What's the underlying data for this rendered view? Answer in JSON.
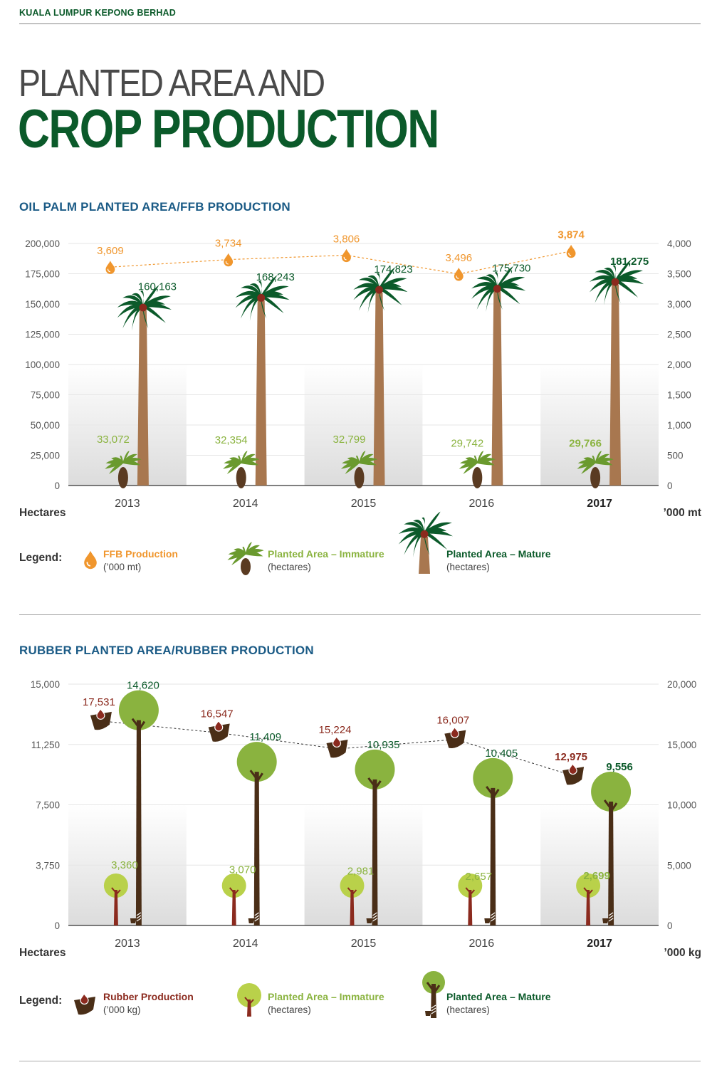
{
  "header": {
    "company": "KUALA LUMPUR KEPONG BERHAD"
  },
  "page": {
    "title_line1": "PLANTED AREA AND",
    "title_line2": "CROP PRODUCTION"
  },
  "colors": {
    "mature_palm": "#0b5a2a",
    "immature": "#8ab33f",
    "ffb": "#f0962d",
    "rubber": "#8b2a1e",
    "trunk": "#a8774f",
    "section_title": "#1b5b86"
  },
  "chart_data": [
    {
      "type": "bar",
      "title": "OIL PALM PLANTED AREA/FFB PRODUCTION",
      "categories": [
        "2013",
        "2014",
        "2015",
        "2016",
        "2017"
      ],
      "highlight_category": "2017",
      "ylabel_left": "Hectares",
      "ylabel_right": "’000 mt",
      "ylim_left": [
        0,
        200000
      ],
      "ylim_right": [
        0,
        4000
      ],
      "yticks_left": [
        "0",
        "25,000",
        "50,000",
        "75,000",
        "100,000",
        "125,000",
        "150,000",
        "175,000",
        "200,000"
      ],
      "yticks_right": [
        "0",
        "500",
        "1,000",
        "1,500",
        "2,000",
        "2,500",
        "3,000",
        "3,500",
        "4,000"
      ],
      "series": [
        {
          "name": "Planted Area – Mature",
          "unit": "(hectares)",
          "axis": "left",
          "icon": "palm-tree-mature-icon",
          "values": [
            160163,
            168243,
            174823,
            175730,
            181275
          ],
          "labels": [
            "160,163",
            "168,243",
            "174,823",
            "175,730",
            "181,275"
          ]
        },
        {
          "name": "Planted Area – Immature",
          "unit": "(hectares)",
          "axis": "left",
          "icon": "palm-tree-immature-icon",
          "values": [
            33072,
            32354,
            32799,
            29742,
            29766
          ],
          "labels": [
            "33,072",
            "32,354",
            "32,799",
            "29,742",
            "29,766"
          ]
        },
        {
          "name": "FFB Production",
          "unit": "(’000 mt)",
          "axis": "right",
          "icon": "oil-drop-icon",
          "values": [
            3609,
            3734,
            3806,
            3496,
            3874
          ],
          "labels": [
            "3,609",
            "3,734",
            "3,806",
            "3,496",
            "3,874"
          ]
        }
      ],
      "legend_label": "Legend:"
    },
    {
      "type": "bar",
      "title": "RUBBER PLANTED AREA/RUBBER PRODUCTION",
      "categories": [
        "2013",
        "2014",
        "2015",
        "2016",
        "2017"
      ],
      "highlight_category": "2017",
      "ylabel_left": "Hectares",
      "ylabel_right": "’000 kg",
      "ylim_left": [
        0,
        15000
      ],
      "ylim_right": [
        0,
        20000
      ],
      "yticks_left": [
        "0",
        "3,750",
        "7,500",
        "11,250",
        "15,000"
      ],
      "yticks_right": [
        "0",
        "5,000",
        "10,000",
        "15,000",
        "20,000"
      ],
      "series": [
        {
          "name": "Planted Area – Mature",
          "unit": "(hectares)",
          "axis": "left",
          "icon": "rubber-tree-mature-icon",
          "values": [
            14620,
            11409,
            10935,
            10405,
            9556
          ],
          "labels": [
            "14,620",
            "11,409",
            "10,935",
            "10,405",
            "9,556"
          ]
        },
        {
          "name": "Planted Area – Immature",
          "unit": "(hectares)",
          "axis": "left",
          "icon": "rubber-tree-immature-icon",
          "values": [
            3360,
            3070,
            2981,
            2657,
            2699
          ],
          "labels": [
            "3,360",
            "3,070",
            "2,981",
            "2,657",
            "2,699"
          ]
        },
        {
          "name": "Rubber Production",
          "unit": "(’000 kg)",
          "axis": "right",
          "icon": "latex-cup-icon",
          "values": [
            17531,
            16547,
            15224,
            16007,
            12975
          ],
          "labels": [
            "17,531",
            "16,547",
            "15,224",
            "16,007",
            "12,975"
          ]
        }
      ],
      "legend_label": "Legend:"
    }
  ]
}
